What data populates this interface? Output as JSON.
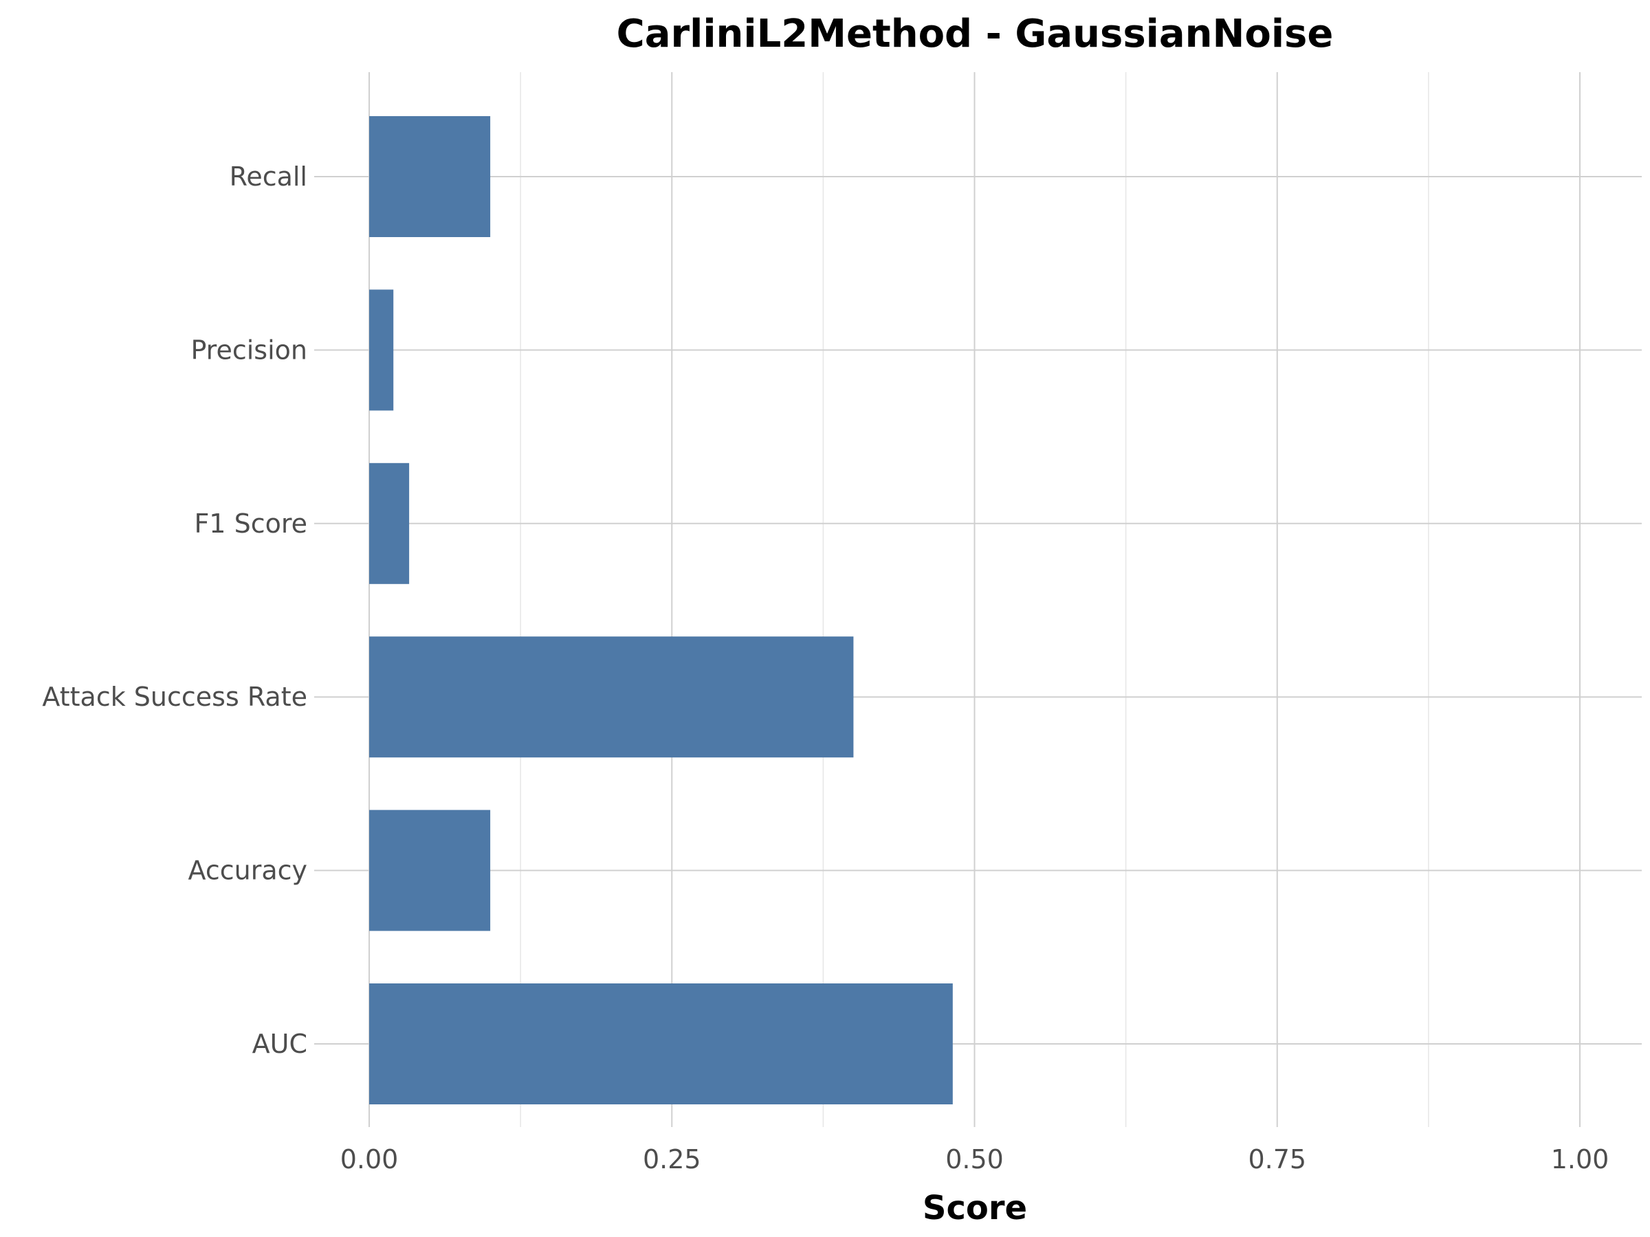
{
  "chart_data": {
    "type": "bar",
    "orientation": "horizontal",
    "title": "CarliniL2Method - GaussianNoise",
    "xlabel": "Score",
    "ylabel": "",
    "categories": [
      "AUC",
      "Accuracy",
      "Attack Success Rate",
      "F1 Score",
      "Precision",
      "Recall"
    ],
    "values": [
      0.482,
      0.1,
      0.4,
      0.033,
      0.02,
      0.1
    ],
    "xlim": [
      0,
      1.05
    ],
    "xticks": [
      "0.00",
      "0.25",
      "0.50",
      "0.75",
      "1.00"
    ],
    "grid": true,
    "bar_color": "#4e79a7"
  }
}
